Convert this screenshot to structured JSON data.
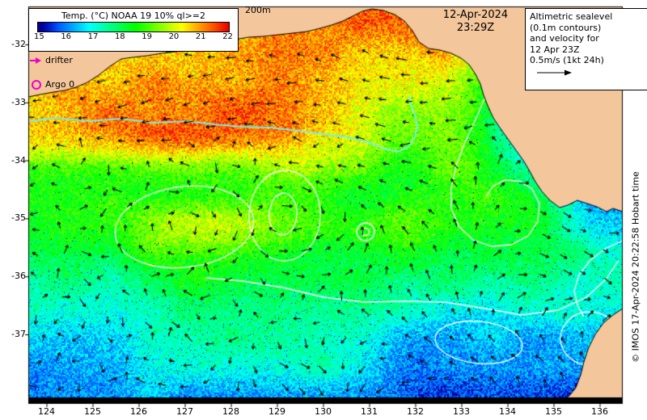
{
  "legend": {
    "title": "Temp. (°C) NOAA 19 10% ql>=2",
    "ticks": [
      "15",
      "16",
      "17",
      "18",
      "19",
      "20",
      "21",
      "22"
    ]
  },
  "labels": {
    "depth_contour": "200m",
    "date": "12-Apr-2024",
    "time": "23:29Z",
    "copyright": "© IMOS 17-Apr-2024 20:22:58 Hobart time"
  },
  "altimetric_box": {
    "lines": [
      "Altimetric sealevel",
      "(0.1m contours)",
      "and velocity for",
      "12 Apr 23Z",
      "0.5m/s (1kt 24h)"
    ]
  },
  "markers": {
    "drifter_label": "drifter",
    "argo_label": "Argo 0"
  },
  "axes": {
    "lat_ticks": [
      "-32",
      "-33",
      "-34",
      "-35",
      "-36",
      "-37"
    ],
    "lon_ticks": [
      "124",
      "125",
      "126",
      "127",
      "128",
      "129",
      "130",
      "131",
      "132",
      "133",
      "134",
      "135",
      "136"
    ]
  },
  "colors": {
    "land": "#f3c69c",
    "ocean_contour": "#ffffff",
    "front_line": "#7decec",
    "accent_magenta": "#ee00cc",
    "arrow_black": "#000000"
  },
  "map_data": {
    "type": "sst_field_map",
    "temperature_range_c": [
      15,
      22
    ],
    "overlays": [
      "altimetric sealevel contours",
      "velocity arrows",
      "200m isobath label",
      "drifter marker",
      "Argo float marker"
    ]
  }
}
